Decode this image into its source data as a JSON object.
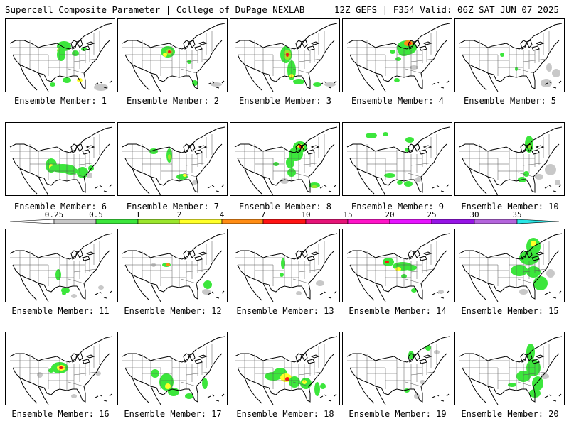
{
  "header": {
    "title_left": "Supercell Composite Parameter | College of DuPage NEXLAB",
    "title_right": "12Z GEFS | F354 Valid: 06Z SAT JUN 07 2025"
  },
  "panels": [
    {
      "label": "Ensemble Member: 1"
    },
    {
      "label": "Ensemble Member: 2"
    },
    {
      "label": "Ensemble Member: 3"
    },
    {
      "label": "Ensemble Member: 4"
    },
    {
      "label": "Ensemble Member: 5"
    },
    {
      "label": "Ensemble Member: 6"
    },
    {
      "label": "Ensemble Member: 7"
    },
    {
      "label": "Ensemble Member: 8"
    },
    {
      "label": "Ensemble Member: 9"
    },
    {
      "label": "Ensemble Member: 10"
    },
    {
      "label": "Ensemble Member: 11"
    },
    {
      "label": "Ensemble Member: 12"
    },
    {
      "label": "Ensemble Member: 13"
    },
    {
      "label": "Ensemble Member: 14"
    },
    {
      "label": "Ensemble Member: 15"
    },
    {
      "label": "Ensemble Member: 16"
    },
    {
      "label": "Ensemble Member: 17"
    },
    {
      "label": "Ensemble Member: 18"
    },
    {
      "label": "Ensemble Member: 19"
    },
    {
      "label": "Ensemble Member: 20"
    }
  ],
  "colorbar": {
    "ticks": [
      "0.25",
      "0.5",
      "1",
      "2",
      "4",
      "7",
      "10",
      "15",
      "20",
      "25",
      "30",
      "35"
    ],
    "colors": [
      "#c8c8c8",
      "#3ce63c",
      "#9be62d",
      "#ffff28",
      "#ff8c14",
      "#ff1414",
      "#e61478",
      "#ff14c8",
      "#e614ff",
      "#9614e6",
      "#b464dc",
      "#28e6e6"
    ]
  }
}
